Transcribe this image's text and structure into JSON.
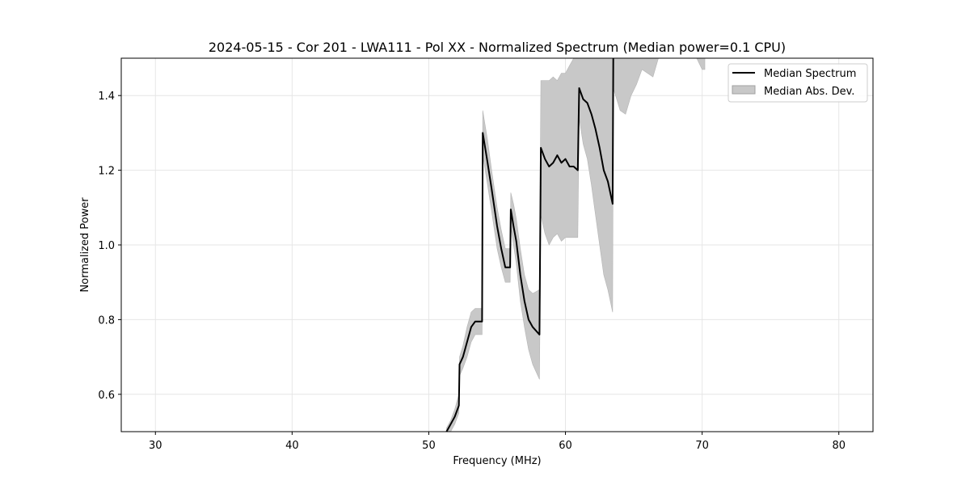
{
  "chart_data": {
    "type": "line",
    "title": "2024-05-15 - Cor 201 - LWA111 - Pol XX - Normalized Spectrum (Median power=0.1 CPU)",
    "xlabel": "Frequency (MHz)",
    "ylabel": "Normalized Power",
    "xlim": [
      27.5,
      82.5
    ],
    "ylim": [
      0.5,
      1.5
    ],
    "xticks": [
      30,
      40,
      50,
      60,
      70,
      80
    ],
    "xtick_labels": [
      "30",
      "40",
      "50",
      "60",
      "70",
      "80"
    ],
    "yticks": [
      0.6,
      0.8,
      1.0,
      1.2,
      1.4
    ],
    "ytick_labels": [
      "0.6",
      "0.8",
      "1.0",
      "1.2",
      "1.4"
    ],
    "grid": true,
    "legend_position": "top-right",
    "legend": [
      "Median Spectrum",
      "Median Abs. Dev."
    ],
    "series": [
      {
        "name": "Median Spectrum",
        "color": "#000000",
        "x": [
          51.3,
          51.6,
          51.9,
          52.2,
          52.25,
          52.5,
          52.8,
          53.1,
          53.4,
          53.9,
          53.95,
          54.3,
          54.6,
          55.0,
          55.3,
          55.6,
          55.95,
          56.0,
          56.2,
          56.4,
          56.7,
          57.0,
          57.3,
          57.6,
          58.1,
          58.2,
          58.5,
          58.8,
          59.1,
          59.4,
          59.7,
          60.0,
          60.3,
          60.6,
          60.9,
          61.0,
          61.3,
          61.6,
          61.9,
          62.2,
          62.5,
          62.8,
          63.1,
          63.45,
          63.5
        ],
        "y": [
          0.5,
          0.52,
          0.54,
          0.57,
          0.68,
          0.7,
          0.74,
          0.78,
          0.795,
          0.795,
          1.3,
          1.22,
          1.15,
          1.05,
          0.99,
          0.94,
          0.94,
          1.095,
          1.05,
          1.01,
          0.92,
          0.85,
          0.8,
          0.78,
          0.76,
          1.26,
          1.23,
          1.21,
          1.22,
          1.24,
          1.22,
          1.23,
          1.21,
          1.21,
          1.2,
          1.42,
          1.39,
          1.38,
          1.35,
          1.31,
          1.26,
          1.2,
          1.17,
          1.11,
          1.5
        ]
      },
      {
        "name": "Median Abs. Dev.",
        "color": "#c8c8c8",
        "type": "area",
        "x": [
          51.3,
          51.6,
          51.9,
          52.2,
          52.25,
          52.5,
          52.8,
          53.1,
          53.4,
          53.9,
          53.95,
          54.3,
          54.6,
          55.0,
          55.3,
          55.6,
          55.95,
          56.0,
          56.2,
          56.4,
          56.7,
          57.0,
          57.3,
          57.6,
          58.1,
          58.2,
          58.5,
          58.8,
          59.1,
          59.4,
          59.7,
          60.0,
          60.3,
          60.6,
          60.9,
          61.0,
          61.3,
          61.6,
          61.9,
          62.2,
          62.5,
          62.8,
          63.1,
          63.45,
          63.5,
          64.0,
          64.4,
          64.8,
          65.2,
          65.6,
          66.0,
          66.4,
          66.8,
          67.2,
          67.6,
          68.0,
          68.4,
          68.8,
          69.2,
          69.6,
          70.0,
          70.2
        ],
        "upper": [
          0.51,
          0.53,
          0.56,
          0.6,
          0.7,
          0.73,
          0.78,
          0.82,
          0.83,
          0.83,
          1.36,
          1.28,
          1.2,
          1.1,
          1.04,
          0.99,
          0.99,
          1.14,
          1.11,
          1.07,
          0.99,
          0.92,
          0.88,
          0.87,
          0.88,
          1.44,
          1.44,
          1.44,
          1.45,
          1.44,
          1.46,
          1.46,
          1.48,
          1.5,
          1.5,
          1.5,
          1.5,
          1.5,
          1.5,
          1.5,
          1.5,
          1.5,
          1.5,
          1.5,
          1.5,
          1.5,
          1.5,
          1.5,
          1.5,
          1.5,
          1.5,
          1.5,
          1.5,
          1.5,
          1.5,
          1.5,
          1.5,
          1.5,
          1.5,
          1.5,
          1.5,
          1.5
        ],
        "lower": [
          0.5,
          0.5,
          0.52,
          0.55,
          0.65,
          0.67,
          0.7,
          0.74,
          0.76,
          0.76,
          1.24,
          1.16,
          1.09,
          0.99,
          0.94,
          0.9,
          0.9,
          1.05,
          1.0,
          0.95,
          0.85,
          0.78,
          0.72,
          0.68,
          0.64,
          1.08,
          1.03,
          1.0,
          1.02,
          1.03,
          1.01,
          1.02,
          1.02,
          1.02,
          1.02,
          1.34,
          1.27,
          1.23,
          1.16,
          1.08,
          1.0,
          0.92,
          0.88,
          0.82,
          1.42,
          1.36,
          1.35,
          1.4,
          1.43,
          1.47,
          1.46,
          1.45,
          1.5,
          1.5,
          1.5,
          1.5,
          1.5,
          1.5,
          1.5,
          1.5,
          1.47,
          1.47
        ]
      }
    ]
  }
}
